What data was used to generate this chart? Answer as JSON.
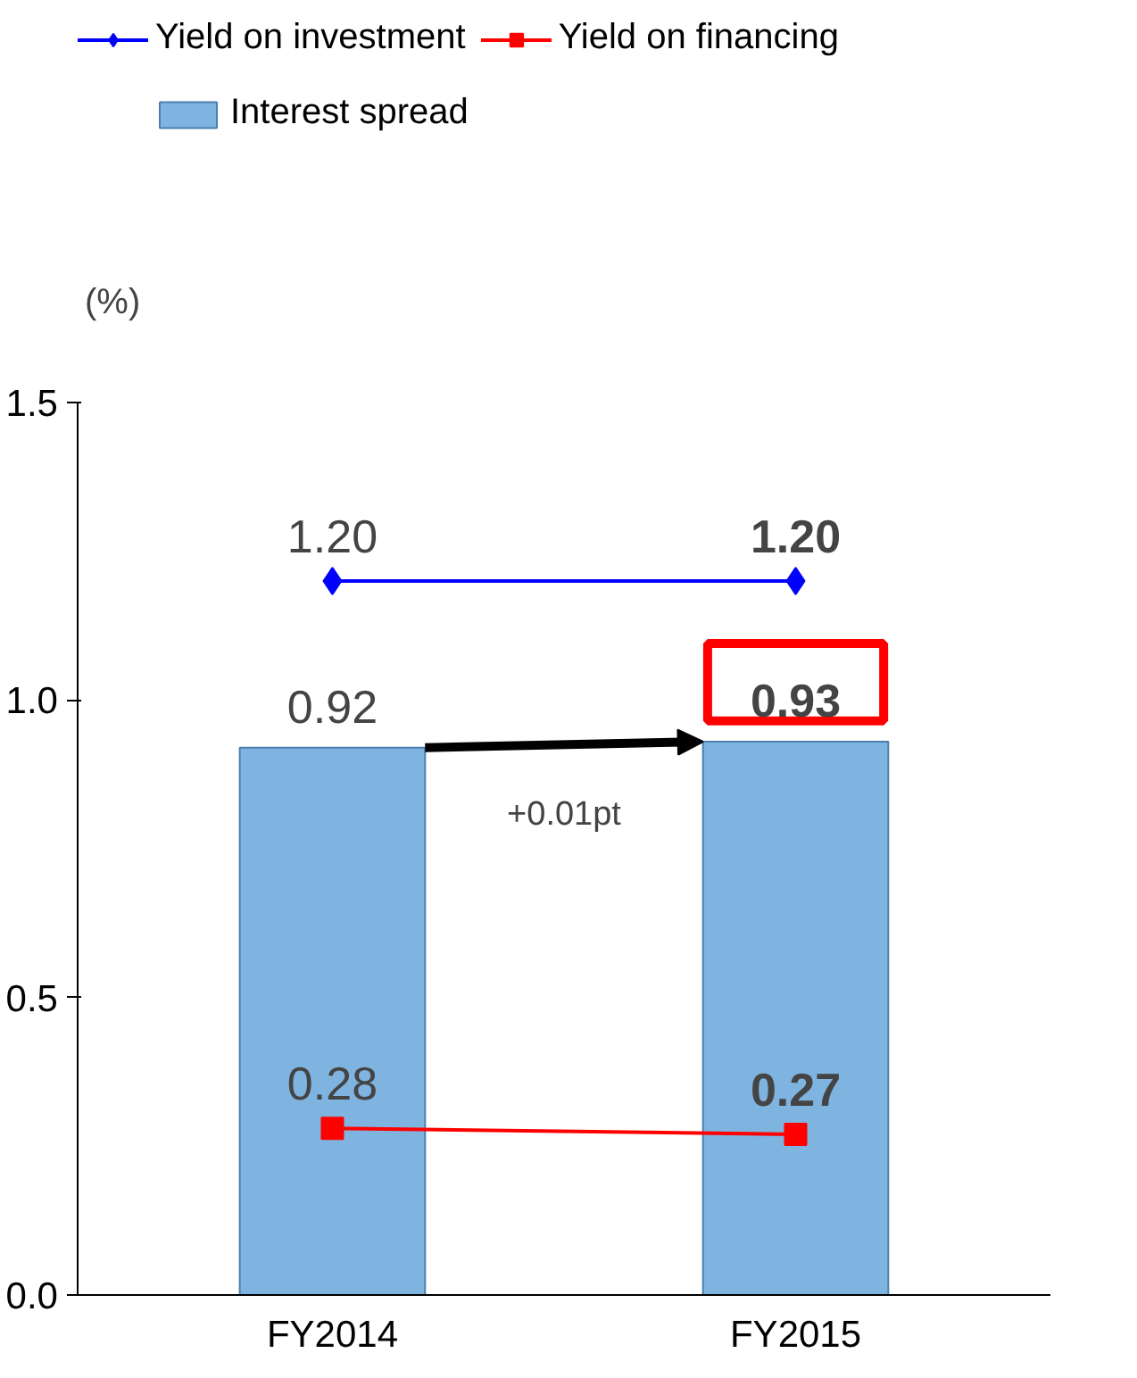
{
  "chart_data": {
    "type": "bar",
    "ylabel": "(%)",
    "categories": [
      "FY2014",
      "FY2015"
    ],
    "series": [
      {
        "name": "Yield on investment",
        "type": "line",
        "color": "#0000ff",
        "marker": "diamond",
        "values": [
          1.2,
          1.2
        ],
        "value_labels": [
          "1.20",
          "1.20"
        ]
      },
      {
        "name": "Yield on financing",
        "type": "line",
        "color": "#ff0000",
        "marker": "square",
        "values": [
          0.28,
          0.27
        ],
        "value_labels": [
          "0.28",
          "0.27"
        ]
      },
      {
        "name": "Interest spread",
        "color": "#7fb3e0",
        "values": [
          0.92,
          0.93
        ],
        "value_labels": [
          "0.92",
          "0.93"
        ]
      }
    ],
    "ylim": [
      0,
      1.5
    ],
    "yticks": [
      {
        "value": 0,
        "label": "0.0"
      },
      {
        "value": 0.5,
        "label": "0.5"
      },
      {
        "value": 1,
        "label": "1.0"
      },
      {
        "value": 1.5,
        "label": "1.5"
      }
    ],
    "annotations": [
      "+0.01pt"
    ],
    "grid": false,
    "legend": "top"
  }
}
